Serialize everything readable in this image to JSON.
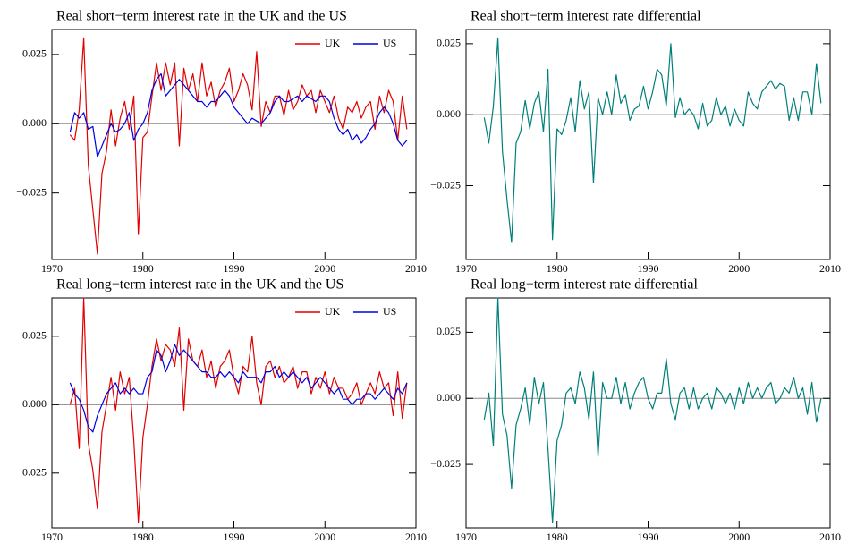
{
  "chart_data": [
    {
      "type": "line",
      "title": "Real short−term interest rate in the UK and the US",
      "x": [
        1972,
        1972.5,
        1973,
        1973.5,
        1974,
        1974.5,
        1975,
        1975.5,
        1976,
        1976.5,
        1977,
        1977.5,
        1978,
        1978.5,
        1979,
        1979.5,
        1980,
        1980.5,
        1981,
        1981.5,
        1982,
        1982.5,
        1983,
        1983.5,
        1984,
        1984.5,
        1985,
        1985.5,
        1986,
        1986.5,
        1987,
        1987.5,
        1988,
        1988.5,
        1989,
        1989.5,
        1990,
        1990.5,
        1991,
        1991.5,
        1992,
        1992.5,
        1993,
        1993.5,
        1994,
        1994.5,
        1995,
        1995.5,
        1996,
        1996.5,
        1997,
        1997.5,
        1998,
        1998.5,
        1999,
        1999.5,
        2000,
        2000.5,
        2001,
        2001.5,
        2002,
        2002.5,
        2003,
        2003.5,
        2004,
        2004.5,
        2005,
        2005.5,
        2006,
        2006.5,
        2007,
        2007.5,
        2008,
        2008.5,
        2009
      ],
      "series": [
        {
          "name": "UK",
          "color": "#e00000",
          "values": [
            -0.004,
            -0.006,
            0.005,
            0.031,
            -0.015,
            -0.031,
            -0.047,
            -0.018,
            -0.01,
            0.005,
            -0.008,
            0.002,
            0.008,
            -0.002,
            0.01,
            -0.04,
            -0.005,
            -0.003,
            0.01,
            0.022,
            0.012,
            0.022,
            0.014,
            0.022,
            -0.008,
            0.02,
            0.012,
            0.018,
            0.008,
            0.022,
            0.01,
            0.015,
            0.006,
            0.012,
            0.015,
            0.02,
            0.008,
            0.012,
            0.018,
            0.014,
            0.005,
            0.026,
            -0.001,
            0.008,
            0.004,
            0.01,
            0.01,
            0.003,
            0.012,
            0.005,
            0.008,
            0.014,
            0.01,
            0.012,
            0.004,
            0.012,
            0.008,
            0.004,
            0.01,
            0.002,
            -0.002,
            0.006,
            0.004,
            0.008,
            0.002,
            0.006,
            0.008,
            -0.002,
            0.01,
            0.004,
            0.012,
            0.008,
            -0.006,
            0.01,
            -0.002
          ]
        },
        {
          "name": "US",
          "color": "#0000e0",
          "values": [
            -0.003,
            0.004,
            0.002,
            0.004,
            -0.002,
            -0.001,
            -0.012,
            -0.008,
            -0.004,
            0.0,
            -0.003,
            -0.002,
            0.0,
            0.004,
            -0.006,
            -0.002,
            0.0,
            0.004,
            0.012,
            0.016,
            0.018,
            0.01,
            0.012,
            0.014,
            0.016,
            0.014,
            0.012,
            0.01,
            0.008,
            0.008,
            0.006,
            0.008,
            0.008,
            0.01,
            0.012,
            0.01,
            0.006,
            0.004,
            0.002,
            0.0,
            0.002,
            0.001,
            0.0,
            0.002,
            0.004,
            0.008,
            0.01,
            0.008,
            0.008,
            0.009,
            0.01,
            0.008,
            0.01,
            0.009,
            0.008,
            0.01,
            0.01,
            0.008,
            0.002,
            -0.002,
            -0.004,
            -0.002,
            -0.006,
            -0.004,
            -0.007,
            -0.005,
            -0.002,
            0.0,
            0.004,
            0.006,
            0.004,
            0.0,
            -0.006,
            -0.008,
            -0.006
          ]
        }
      ],
      "xlim": [
        1970,
        2010
      ],
      "xticks": [
        1970,
        1980,
        1990,
        2000,
        2010
      ],
      "ylim": [
        -0.049,
        0.034
      ],
      "yticks": [
        {
          "value": -0.025,
          "label": "−0.025"
        },
        {
          "value": 0,
          "label": "0.000"
        },
        {
          "value": 0.025,
          "label": "0.025"
        }
      ],
      "zero_line": true,
      "legend": "upper right"
    },
    {
      "type": "line",
      "title": "Real short−term interest rate differential",
      "x": [
        1972,
        1972.5,
        1973,
        1973.5,
        1974,
        1974.5,
        1975,
        1975.5,
        1976,
        1976.5,
        1977,
        1977.5,
        1978,
        1978.5,
        1979,
        1979.5,
        1980,
        1980.5,
        1981,
        1981.5,
        1982,
        1982.5,
        1983,
        1983.5,
        1984,
        1984.5,
        1985,
        1985.5,
        1986,
        1986.5,
        1987,
        1987.5,
        1988,
        1988.5,
        1989,
        1989.5,
        1990,
        1990.5,
        1991,
        1991.5,
        1992,
        1992.5,
        1993,
        1993.5,
        1994,
        1994.5,
        1995,
        1995.5,
        1996,
        1996.5,
        1997,
        1997.5,
        1998,
        1998.5,
        1999,
        1999.5,
        2000,
        2000.5,
        2001,
        2001.5,
        2002,
        2002.5,
        2003,
        2003.5,
        2004,
        2004.5,
        2005,
        2005.5,
        2006,
        2006.5,
        2007,
        2007.5,
        2008,
        2008.5,
        2009
      ],
      "series": [
        {
          "color": "#00807a",
          "values": [
            -0.001,
            -0.01,
            0.003,
            0.027,
            -0.013,
            -0.03,
            -0.045,
            -0.01,
            -0.006,
            0.005,
            -0.005,
            0.004,
            0.008,
            -0.006,
            0.016,
            -0.044,
            -0.005,
            -0.007,
            -0.002,
            0.006,
            -0.006,
            0.012,
            0.002,
            0.008,
            -0.024,
            0.006,
            0.0,
            0.008,
            0.0,
            0.014,
            0.004,
            0.007,
            -0.002,
            0.002,
            0.003,
            0.01,
            0.002,
            0.008,
            0.016,
            0.014,
            0.003,
            0.025,
            -0.001,
            0.006,
            0.0,
            0.002,
            0.0,
            -0.005,
            0.004,
            -0.004,
            -0.002,
            0.006,
            0.0,
            0.003,
            -0.004,
            0.002,
            -0.002,
            -0.004,
            0.008,
            0.004,
            0.002,
            0.008,
            0.01,
            0.012,
            0.009,
            0.011,
            0.01,
            -0.002,
            0.006,
            -0.002,
            0.008,
            0.008,
            0.0,
            0.018,
            0.004
          ]
        }
      ],
      "xlim": [
        1970,
        2010
      ],
      "xticks": [
        1970,
        1980,
        1990,
        2000,
        2010
      ],
      "ylim": [
        -0.051,
        0.03
      ],
      "yticks": [
        {
          "value": -0.025,
          "label": "−0.025"
        },
        {
          "value": 0,
          "label": "0.000"
        },
        {
          "value": 0.025,
          "label": "0.025"
        }
      ],
      "zero_line": true
    },
    {
      "type": "line",
      "title": "Real long−term interest rate in the UK and the US",
      "x": [
        1972,
        1972.5,
        1973,
        1973.5,
        1974,
        1974.5,
        1975,
        1975.5,
        1976,
        1976.5,
        1977,
        1977.5,
        1978,
        1978.5,
        1979,
        1979.5,
        1980,
        1980.5,
        1981,
        1981.5,
        1982,
        1982.5,
        1983,
        1983.5,
        1984,
        1984.5,
        1985,
        1985.5,
        1986,
        1986.5,
        1987,
        1987.5,
        1988,
        1988.5,
        1989,
        1989.5,
        1990,
        1990.5,
        1991,
        1991.5,
        1992,
        1992.5,
        1993,
        1993.5,
        1994,
        1994.5,
        1995,
        1995.5,
        1996,
        1996.5,
        1997,
        1997.5,
        1998,
        1998.5,
        1999,
        1999.5,
        2000,
        2000.5,
        2001,
        2001.5,
        2002,
        2002.5,
        2003,
        2003.5,
        2004,
        2004.5,
        2005,
        2005.5,
        2006,
        2006.5,
        2007,
        2007.5,
        2008,
        2008.5,
        2009
      ],
      "series": [
        {
          "name": "UK",
          "color": "#e00000",
          "values": [
            0.0,
            0.006,
            -0.016,
            0.039,
            -0.014,
            -0.024,
            -0.038,
            -0.01,
            0.0,
            0.01,
            -0.002,
            0.012,
            0.004,
            0.01,
            -0.013,
            -0.043,
            -0.012,
            0.0,
            0.014,
            0.024,
            0.016,
            0.022,
            0.02,
            0.014,
            0.028,
            -0.002,
            0.024,
            0.016,
            0.014,
            0.02,
            0.01,
            0.016,
            0.006,
            0.014,
            0.016,
            0.02,
            0.01,
            0.004,
            0.014,
            0.012,
            0.025,
            0.008,
            0.0,
            0.014,
            0.016,
            0.01,
            0.014,
            0.008,
            0.01,
            0.014,
            0.006,
            0.012,
            0.012,
            0.004,
            0.01,
            0.006,
            0.012,
            0.004,
            0.01,
            0.006,
            0.006,
            0.002,
            0.004,
            0.008,
            0.0,
            0.004,
            0.008,
            0.004,
            0.012,
            0.006,
            0.008,
            -0.004,
            0.012,
            -0.005,
            0.008
          ]
        },
        {
          "name": "US",
          "color": "#0000e0",
          "values": [
            0.008,
            0.004,
            0.002,
            -0.002,
            -0.008,
            -0.01,
            -0.004,
            0.0,
            0.004,
            0.006,
            0.008,
            0.004,
            0.006,
            0.004,
            0.006,
            0.004,
            0.004,
            0.01,
            0.012,
            0.02,
            0.018,
            0.012,
            0.016,
            0.022,
            0.018,
            0.02,
            0.018,
            0.016,
            0.014,
            0.012,
            0.012,
            0.01,
            0.01,
            0.012,
            0.01,
            0.012,
            0.01,
            0.008,
            0.012,
            0.01,
            0.01,
            0.01,
            0.008,
            0.012,
            0.012,
            0.014,
            0.01,
            0.012,
            0.01,
            0.012,
            0.01,
            0.008,
            0.01,
            0.006,
            0.008,
            0.01,
            0.008,
            0.006,
            0.004,
            0.006,
            0.002,
            0.002,
            0.0,
            0.002,
            0.002,
            0.004,
            0.004,
            0.002,
            0.004,
            0.006,
            0.004,
            0.002,
            0.006,
            0.004,
            0.008
          ]
        }
      ],
      "xlim": [
        1970,
        2010
      ],
      "xticks": [
        1970,
        1980,
        1990,
        2000,
        2010
      ],
      "ylim": [
        -0.045,
        0.039
      ],
      "yticks": [
        {
          "value": -0.025,
          "label": "−0.025"
        },
        {
          "value": 0,
          "label": "0.000"
        },
        {
          "value": 0.025,
          "label": "0.025"
        }
      ],
      "zero_line": true,
      "legend": "upper right"
    },
    {
      "type": "line",
      "title": "Real long−term interest rate  differential",
      "x": [
        1972,
        1972.5,
        1973,
        1973.5,
        1974,
        1974.5,
        1975,
        1975.5,
        1976,
        1976.5,
        1977,
        1977.5,
        1978,
        1978.5,
        1979,
        1979.5,
        1980,
        1980.5,
        1981,
        1981.5,
        1982,
        1982.5,
        1983,
        1983.5,
        1984,
        1984.5,
        1985,
        1985.5,
        1986,
        1986.5,
        1987,
        1987.5,
        1988,
        1988.5,
        1989,
        1989.5,
        1990,
        1990.5,
        1991,
        1991.5,
        1992,
        1992.5,
        1993,
        1993.5,
        1994,
        1994.5,
        1995,
        1995.5,
        1996,
        1996.5,
        1997,
        1997.5,
        1998,
        1998.5,
        1999,
        1999.5,
        2000,
        2000.5,
        2001,
        2001.5,
        2002,
        2002.5,
        2003,
        2003.5,
        2004,
        2004.5,
        2005,
        2005.5,
        2006,
        2006.5,
        2007,
        2007.5,
        2008,
        2008.5,
        2009
      ],
      "series": [
        {
          "color": "#00807a",
          "values": [
            -0.008,
            0.002,
            -0.018,
            0.038,
            -0.006,
            -0.014,
            -0.034,
            -0.01,
            -0.004,
            0.004,
            -0.01,
            0.008,
            -0.002,
            0.006,
            -0.019,
            -0.047,
            -0.016,
            -0.01,
            0.002,
            0.004,
            -0.002,
            0.01,
            0.004,
            -0.008,
            0.01,
            -0.022,
            0.006,
            0.0,
            0.0,
            0.008,
            -0.002,
            0.006,
            -0.004,
            0.002,
            0.006,
            0.008,
            0.0,
            -0.004,
            0.002,
            0.002,
            0.015,
            -0.002,
            -0.008,
            0.002,
            0.004,
            -0.004,
            0.004,
            -0.004,
            0.0,
            0.002,
            -0.004,
            0.004,
            0.002,
            -0.002,
            0.002,
            -0.004,
            0.004,
            -0.002,
            0.006,
            0.0,
            0.004,
            0.0,
            0.004,
            0.006,
            -0.002,
            0.0,
            0.004,
            0.002,
            0.008,
            0.0,
            0.004,
            -0.006,
            0.006,
            -0.009,
            0.0
          ]
        }
      ],
      "xlim": [
        1970,
        2010
      ],
      "xticks": [
        1970,
        1980,
        1990,
        2000,
        2010
      ],
      "ylim": [
        -0.049,
        0.038
      ],
      "yticks": [
        {
          "value": -0.025,
          "label": "−0.025"
        },
        {
          "value": 0,
          "label": "0.000"
        },
        {
          "value": 0.025,
          "label": "0.025"
        }
      ],
      "zero_line": true
    }
  ]
}
